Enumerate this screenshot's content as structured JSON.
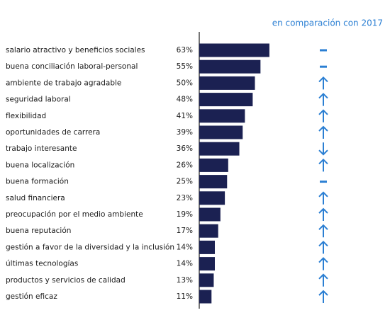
{
  "chart_data": {
    "type": "bar",
    "orientation": "horizontal",
    "title": "en comparación con 2017",
    "categories": [
      "salario atractivo y beneficios sociales",
      "buena conciliación laboral-personal",
      "ambiente de trabajo agradable",
      "seguridad laboral",
      "flexibilidad",
      "oportunidades de carrera",
      "trabajo interesante",
      "buena localización",
      "buena formación",
      "salud financiera",
      "preocupación por el medio ambiente",
      "buena reputación",
      "gestión a favor de la diversidad y la inclusión",
      "últimas tecnologías",
      "productos y servicios de calidad",
      "gestión eficaz"
    ],
    "values": [
      63,
      55,
      50,
      48,
      41,
      39,
      36,
      26,
      25,
      23,
      19,
      17,
      14,
      14,
      13,
      11
    ],
    "value_labels": [
      "63%",
      "55%",
      "50%",
      "48%",
      "41%",
      "39%",
      "36%",
      "26%",
      "25%",
      "23%",
      "19%",
      "17%",
      "14%",
      "14%",
      "13%",
      "11%"
    ],
    "trends": [
      "flat",
      "flat",
      "up",
      "up",
      "up",
      "up",
      "down",
      "up",
      "flat",
      "up",
      "up",
      "up",
      "up",
      "up",
      "up",
      "up"
    ],
    "color": "#1b2152",
    "trend_color": "#2b7fd3"
  }
}
